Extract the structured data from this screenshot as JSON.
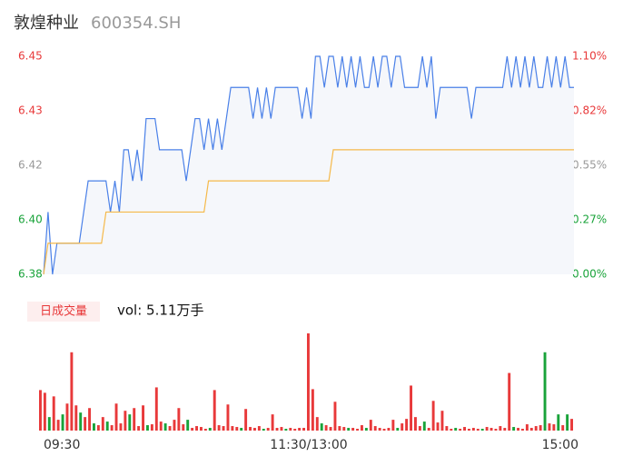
{
  "chart_data": [
    {
      "type": "line",
      "title": "敦煌种业",
      "subtitle": "600354.SH",
      "ylim": [
        6.38,
        6.45
      ],
      "yticks": [
        {
          "value": 6.38,
          "label": "6.38"
        },
        {
          "value": 6.3975,
          "label": "6.40"
        },
        {
          "value": 6.415,
          "label": "6.42"
        },
        {
          "value": 6.4325,
          "label": "6.43"
        },
        {
          "value": 6.45,
          "label": "6.45"
        }
      ],
      "y2lim": [
        0,
        1.097
      ],
      "y2ticks": [
        {
          "value": 0,
          "label": "0.00%"
        },
        {
          "value": 0.274,
          "label": "0.27%"
        },
        {
          "value": 0.549,
          "label": "0.55%"
        },
        {
          "value": 0.823,
          "label": "0.82%"
        },
        {
          "value": 1.097,
          "label": "1.10%"
        }
      ],
      "tick_colors": [
        "#19a33a",
        "#19a33a",
        "#999999",
        "#e8393a",
        "#e8393a"
      ],
      "fill": "#f5f7fb",
      "series": [
        {
          "color": "#4a80e8",
          "values": [
            6.38,
            6.4,
            6.38,
            6.39,
            6.39,
            6.39,
            6.39,
            6.39,
            6.39,
            6.4,
            6.41,
            6.41,
            6.41,
            6.41,
            6.41,
            6.4,
            6.41,
            6.4,
            6.42,
            6.42,
            6.41,
            6.42,
            6.41,
            6.43,
            6.43,
            6.43,
            6.42,
            6.42,
            6.42,
            6.42,
            6.42,
            6.42,
            6.41,
            6.42,
            6.43,
            6.43,
            6.42,
            6.43,
            6.42,
            6.43,
            6.42,
            6.43,
            6.44,
            6.44,
            6.44,
            6.44,
            6.44,
            6.43,
            6.44,
            6.43,
            6.44,
            6.43,
            6.44,
            6.44,
            6.44,
            6.44,
            6.44,
            6.44,
            6.43,
            6.44,
            6.43,
            6.45,
            6.45,
            6.44,
            6.45,
            6.45,
            6.44,
            6.45,
            6.44,
            6.45,
            6.44,
            6.45,
            6.44,
            6.44,
            6.45,
            6.44,
            6.45,
            6.45,
            6.44,
            6.45,
            6.45,
            6.44,
            6.44,
            6.44,
            6.44,
            6.45,
            6.44,
            6.45,
            6.43,
            6.44,
            6.44,
            6.44,
            6.44,
            6.44,
            6.44,
            6.44,
            6.43,
            6.44,
            6.44,
            6.44,
            6.44,
            6.44,
            6.44,
            6.44,
            6.45,
            6.44,
            6.45,
            6.44,
            6.45,
            6.44,
            6.45,
            6.44,
            6.44,
            6.45,
            6.44,
            6.45,
            6.44,
            6.45,
            6.44,
            6.44
          ]
        },
        {
          "color": "#f5b94a",
          "values": [
            6.38,
            6.39,
            6.39,
            6.39,
            6.39,
            6.39,
            6.39,
            6.39,
            6.39,
            6.39,
            6.39,
            6.39,
            6.39,
            6.39,
            6.4,
            6.4,
            6.4,
            6.4,
            6.4,
            6.4,
            6.4,
            6.4,
            6.4,
            6.4,
            6.4,
            6.4,
            6.4,
            6.4,
            6.4,
            6.4,
            6.4,
            6.4,
            6.4,
            6.4,
            6.4,
            6.4,
            6.4,
            6.41,
            6.41,
            6.41,
            6.41,
            6.41,
            6.41,
            6.41,
            6.41,
            6.41,
            6.41,
            6.41,
            6.41,
            6.41,
            6.41,
            6.41,
            6.41,
            6.41,
            6.41,
            6.41,
            6.41,
            6.41,
            6.41,
            6.41,
            6.41,
            6.41,
            6.41,
            6.41,
            6.41,
            6.42,
            6.42,
            6.42,
            6.42,
            6.42,
            6.42,
            6.42,
            6.42,
            6.42,
            6.42,
            6.42,
            6.42,
            6.42,
            6.42,
            6.42,
            6.42,
            6.42,
            6.42,
            6.42,
            6.42,
            6.42,
            6.42,
            6.42,
            6.42,
            6.42,
            6.42,
            6.42,
            6.42,
            6.42,
            6.42,
            6.42,
            6.42,
            6.42,
            6.42,
            6.42,
            6.42,
            6.42,
            6.42,
            6.42,
            6.42,
            6.42,
            6.42,
            6.42,
            6.42,
            6.42,
            6.42,
            6.42,
            6.42,
            6.42,
            6.42,
            6.42,
            6.42,
            6.42,
            6.42,
            6.42
          ]
        }
      ]
    },
    {
      "type": "bar",
      "legend_label": "日成交量",
      "annotation": "vol: 5.11万手",
      "ylim": [
        0,
        11000
      ],
      "up_color": "#e8393a",
      "down_color": "#19a33a",
      "xticks": [
        {
          "value": 0,
          "label": "09:30"
        },
        {
          "value": 59.5,
          "label": "11:30/13:00"
        },
        {
          "value": 119,
          "label": "15:00"
        }
      ],
      "values": [
        4500,
        4200,
        1500,
        3800,
        1200,
        1800,
        3000,
        8700,
        2800,
        2000,
        1500,
        2500,
        800,
        600,
        1500,
        1000,
        600,
        3000,
        800,
        2200,
        1800,
        2500,
        500,
        2800,
        600,
        700,
        4800,
        1000,
        800,
        500,
        1200,
        2500,
        700,
        1200,
        300,
        500,
        400,
        200,
        300,
        4500,
        600,
        500,
        2900,
        500,
        400,
        300,
        2400,
        400,
        300,
        500,
        200,
        300,
        1800,
        300,
        400,
        200,
        300,
        200,
        300,
        300,
        10800,
        4600,
        1500,
        800,
        600,
        400,
        3200,
        500,
        400,
        300,
        300,
        200,
        600,
        300,
        1200,
        500,
        300,
        200,
        300,
        1200,
        300,
        800,
        1300,
        5000,
        1500,
        500,
        1000,
        300,
        3300,
        900,
        2200,
        500,
        200,
        300,
        200,
        400,
        200,
        300,
        200,
        200,
        400,
        300,
        200,
        500,
        300,
        6400,
        400,
        300,
        200,
        700,
        300,
        500,
        600,
        8700,
        800,
        700,
        1800,
        600,
        1800,
        1300
      ],
      "directions": [
        "up",
        "up",
        "down",
        "up",
        "up",
        "down",
        "up",
        "up",
        "up",
        "down",
        "up",
        "up",
        "down",
        "up",
        "up",
        "down",
        "up",
        "up",
        "up",
        "up",
        "down",
        "up",
        "up",
        "up",
        "down",
        "up",
        "up",
        "up",
        "down",
        "up",
        "up",
        "up",
        "up",
        "down",
        "up",
        "up",
        "up",
        "up",
        "down",
        "up",
        "up",
        "up",
        "up",
        "up",
        "up",
        "down",
        "up",
        "up",
        "up",
        "up",
        "down",
        "up",
        "up",
        "up",
        "up",
        "down",
        "up",
        "up",
        "up",
        "up",
        "up",
        "up",
        "up",
        "down",
        "up",
        "up",
        "up",
        "up",
        "up",
        "down",
        "up",
        "up",
        "up",
        "down",
        "up",
        "up",
        "up",
        "up",
        "up",
        "up",
        "down",
        "up",
        "up",
        "up",
        "up",
        "up",
        "down",
        "up",
        "up",
        "up",
        "up",
        "up",
        "up",
        "down",
        "up",
        "up",
        "up",
        "up",
        "up",
        "down",
        "up",
        "up",
        "up",
        "up",
        "up",
        "up",
        "down",
        "up",
        "up",
        "up",
        "up",
        "up",
        "up",
        "down",
        "up",
        "up",
        "down",
        "up",
        "down",
        "up"
      ]
    }
  ]
}
